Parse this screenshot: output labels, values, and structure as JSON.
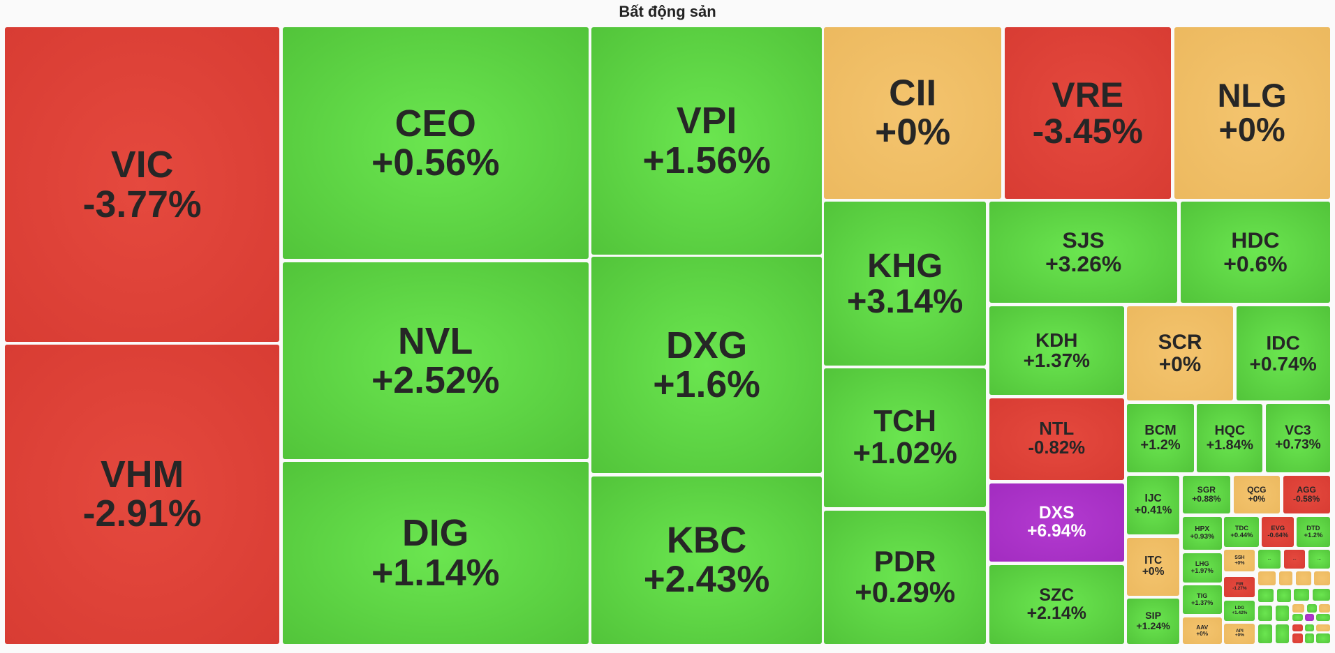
{
  "title": "Bất động sản",
  "tiles": [
    {
      "ticker": "VIC",
      "change": "-3.77%"
    },
    {
      "ticker": "VHM",
      "change": "-2.91%"
    },
    {
      "ticker": "CEO",
      "change": "+0.56%"
    },
    {
      "ticker": "NVL",
      "change": "+2.52%"
    },
    {
      "ticker": "DIG",
      "change": "+1.14%"
    },
    {
      "ticker": "VPI",
      "change": "+1.56%"
    },
    {
      "ticker": "DXG",
      "change": "+1.6%"
    },
    {
      "ticker": "KBC",
      "change": "+2.43%"
    },
    {
      "ticker": "CII",
      "change": "+0%"
    },
    {
      "ticker": "VRE",
      "change": "-3.45%"
    },
    {
      "ticker": "NLG",
      "change": "+0%"
    },
    {
      "ticker": "KHG",
      "change": "+3.14%"
    },
    {
      "ticker": "TCH",
      "change": "+1.02%"
    },
    {
      "ticker": "PDR",
      "change": "+0.29%"
    },
    {
      "ticker": "SJS",
      "change": "+3.26%"
    },
    {
      "ticker": "HDC",
      "change": "+0.6%"
    },
    {
      "ticker": "KDH",
      "change": "+1.37%"
    },
    {
      "ticker": "SCR",
      "change": "+0%"
    },
    {
      "ticker": "IDC",
      "change": "+0.74%"
    },
    {
      "ticker": "NTL",
      "change": "-0.82%"
    },
    {
      "ticker": "DXS",
      "change": "+6.94%"
    },
    {
      "ticker": "SZC",
      "change": "+2.14%"
    },
    {
      "ticker": "BCM",
      "change": "+1.2%"
    },
    {
      "ticker": "HQC",
      "change": "+1.84%"
    },
    {
      "ticker": "VC3",
      "change": "+0.73%"
    },
    {
      "ticker": "IJC",
      "change": "+0.41%"
    },
    {
      "ticker": "ITC",
      "change": "+0%"
    },
    {
      "ticker": "SIP",
      "change": "+1.24%"
    },
    {
      "ticker": "SGR",
      "change": "+0.88%"
    },
    {
      "ticker": "QCG",
      "change": "+0%"
    },
    {
      "ticker": "AGG",
      "change": "-0.58%"
    },
    {
      "ticker": "HPX",
      "change": "+0.93%"
    },
    {
      "ticker": "TDC",
      "change": "+0.44%"
    },
    {
      "ticker": "EVG",
      "change": "-0.64%"
    },
    {
      "ticker": "DTD",
      "change": "+1.2%"
    },
    {
      "ticker": "LHG",
      "change": "+1.97%"
    },
    {
      "ticker": "SSH",
      "change": "+0%"
    },
    {
      "ticker": "TIG",
      "change": "+1.37%"
    },
    {
      "ticker": "FIR",
      "change": "-1.27%"
    },
    {
      "ticker": "LDG",
      "change": "+1.42%"
    },
    {
      "ticker": "AAV",
      "change": "+0%"
    },
    {
      "ticker": "API",
      "change": "+0%"
    },
    {
      "ticker": "..."
    },
    {
      "ticker": "..."
    },
    {
      "ticker": "..."
    }
  ]
}
